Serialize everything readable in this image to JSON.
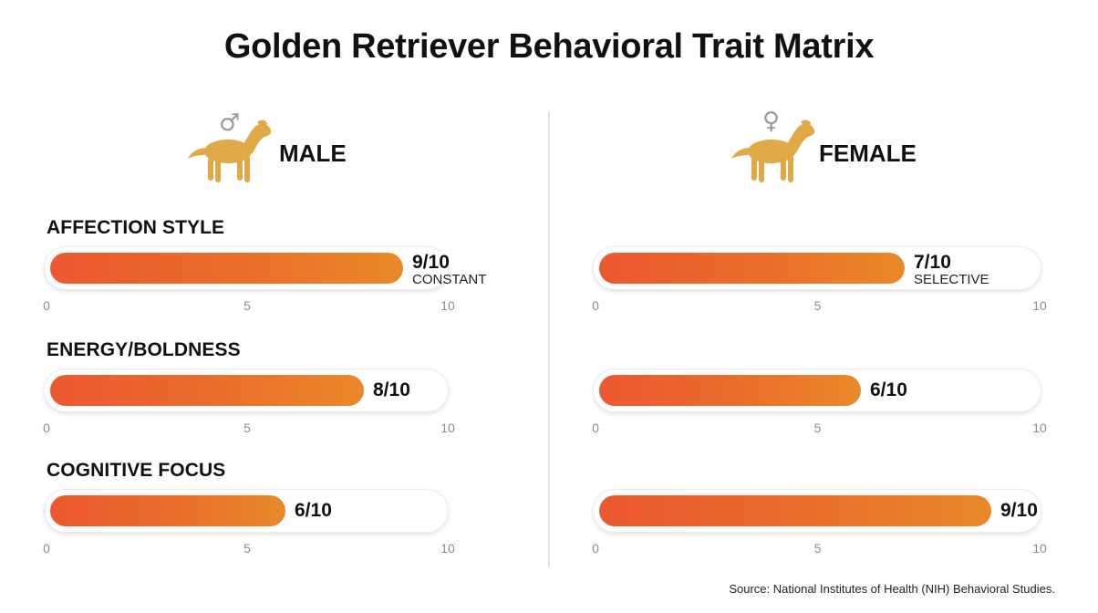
{
  "title": "Golden Retriever Behavioral Trait Matrix",
  "panels": [
    {
      "label": "MALE",
      "symbol": "♂",
      "icon": "dog-icon"
    },
    {
      "label": "FEMALE",
      "symbol": "♀",
      "icon": "dog-icon"
    }
  ],
  "traits": [
    "AFFECTION STYLE",
    "ENERGY/BOLDNESS",
    "COGNITIVE FOCUS"
  ],
  "source": "Source: National Institutes of Health (NIH) Behavioral Studies.",
  "colors": {
    "bar_start": "#ec5830",
    "bar_end": "#e9892a",
    "dog": "#e0a948",
    "gender_symbol": "#9a9a9a"
  },
  "chart_data": {
    "type": "bar",
    "orientation": "horizontal",
    "title": "Golden Retriever Behavioral Trait Matrix",
    "categories": [
      "AFFECTION STYLE",
      "ENERGY/BOLDNESS",
      "COGNITIVE FOCUS"
    ],
    "xlim": [
      0,
      10
    ],
    "ticks": [
      "0",
      "5",
      "10"
    ],
    "series": [
      {
        "name": "MALE",
        "values": [
          9,
          8,
          6
        ],
        "value_labels": [
          "9/10",
          "8/10",
          "6/10"
        ],
        "annotations": [
          "CONSTANT",
          "",
          ""
        ]
      },
      {
        "name": "FEMALE",
        "values": [
          7,
          6,
          9
        ],
        "value_labels": [
          "7/10",
          "6/10",
          "9/10"
        ],
        "annotations": [
          "SELECTIVE",
          "",
          ""
        ]
      }
    ]
  }
}
